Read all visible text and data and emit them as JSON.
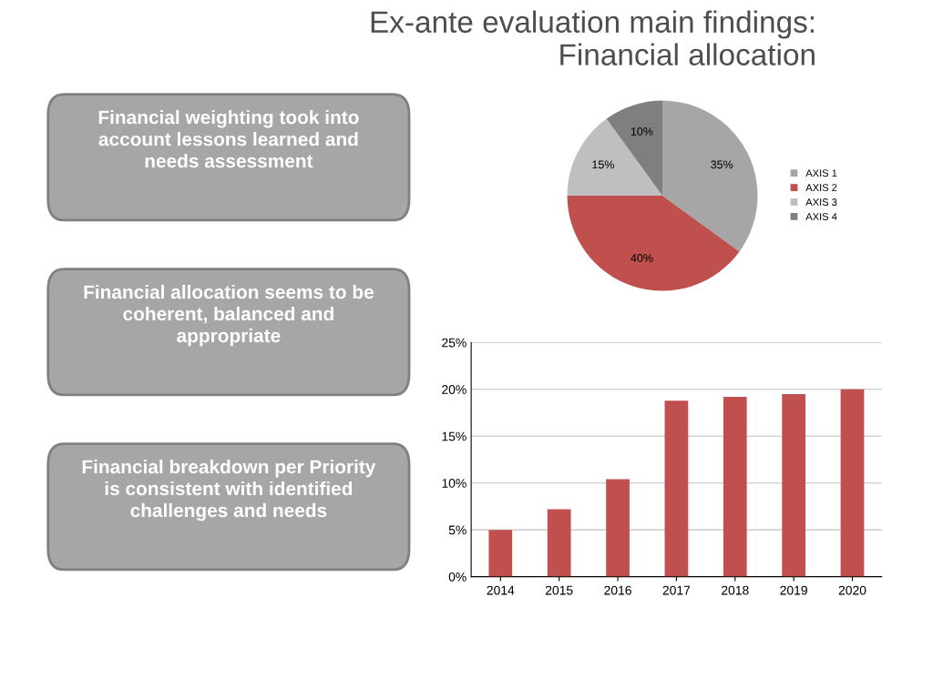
{
  "chart_data": [
    {
      "type": "other",
      "title": "Ex-ante evaluation main findings:\nFinancial allocation",
      "annotations": [
        "Financial weighting took into\naccount lessons learned and\nneeds assessment",
        "Financial allocation seems to be\ncoherent, balanced and\nappropriate",
        "Financial breakdown per Priority\nis consistent with identified\nchallenges and needs"
      ]
    },
    {
      "type": "pie",
      "categories": [
        "AXIS 1",
        "AXIS 2",
        "AXIS 3",
        "AXIS 4"
      ],
      "values": [
        35,
        40,
        15,
        10
      ],
      "colors": [
        "#a6a6a6",
        "#c0504d",
        "#bfbfbf",
        "#7f7f7f"
      ],
      "value_labels": [
        "35%",
        "40%",
        "15%",
        "10%"
      ],
      "legend": "right"
    },
    {
      "type": "bar",
      "categories": [
        "2014",
        "2015",
        "2016",
        "2017",
        "2018",
        "2019",
        "2020"
      ],
      "values": [
        5.0,
        7.2,
        10.4,
        18.8,
        19.2,
        19.5,
        20.0
      ],
      "color": "#c0504d",
      "ylim": [
        0,
        25
      ],
      "yticks": [
        {
          "value": 0,
          "label": "0%"
        },
        {
          "value": 5,
          "label": "5%"
        },
        {
          "value": 10,
          "label": "10%"
        },
        {
          "value": 15,
          "label": "15%"
        },
        {
          "value": 20,
          "label": "20%"
        },
        {
          "value": 25,
          "label": "25%"
        }
      ],
      "grid": "y"
    }
  ]
}
